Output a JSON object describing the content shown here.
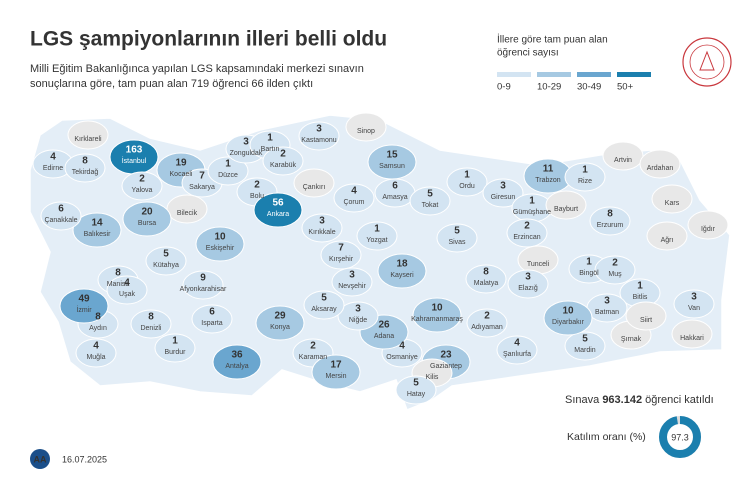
{
  "header": {
    "title": "LGS şampiyonlarının illeri belli oldu",
    "subtitle_lines": [
      "Milli Eğitim Bakanlığınca yapılan LGS kapsamındaki merkezi sınavın",
      "sonuçlarına göre, tam puan alan 719 öğrenci 66 ilden çıktı"
    ]
  },
  "legend": {
    "title_lines": [
      "İllere göre tam puan alan",
      "öğrenci sayısı"
    ],
    "items": [
      {
        "label": "0-9",
        "color": "#d3e4f2"
      },
      {
        "label": "10-29",
        "color": "#a6c9e2"
      },
      {
        "label": "30-49",
        "color": "#6aa6cf"
      },
      {
        "label": "50+",
        "color": "#1b7fae"
      }
    ],
    "no_data_color": "#e8e8e8"
  },
  "provinces": [
    {
      "name": "Kırklareli",
      "value": null
    },
    {
      "name": "Edirne",
      "value": 4
    },
    {
      "name": "Tekirdağ",
      "value": 8
    },
    {
      "name": "İstanbul",
      "value": 163
    },
    {
      "name": "Yalova",
      "value": 2
    },
    {
      "name": "Kocaeli",
      "value": 19
    },
    {
      "name": "Sakarya",
      "value": 7
    },
    {
      "name": "Düzce",
      "value": 1
    },
    {
      "name": "Zonguldak",
      "value": 3
    },
    {
      "name": "Bartın",
      "value": 1
    },
    {
      "name": "Karabük",
      "value": 2
    },
    {
      "name": "Kastamonu",
      "value": 3
    },
    {
      "name": "Sinop",
      "value": null
    },
    {
      "name": "Bolu",
      "value": 2
    },
    {
      "name": "Çankırı",
      "value": null
    },
    {
      "name": "Samsun",
      "value": 15
    },
    {
      "name": "Amasya",
      "value": 6
    },
    {
      "name": "Çorum",
      "value": 4
    },
    {
      "name": "Tokat",
      "value": 5
    },
    {
      "name": "Ordu",
      "value": 1
    },
    {
      "name": "Giresun",
      "value": 3
    },
    {
      "name": "Trabzon",
      "value": 11
    },
    {
      "name": "Rize",
      "value": 1
    },
    {
      "name": "Artvin",
      "value": null
    },
    {
      "name": "Ardahan",
      "value": null
    },
    {
      "name": "Kars",
      "value": null
    },
    {
      "name": "Iğdır",
      "value": null
    },
    {
      "name": "Ağrı",
      "value": null
    },
    {
      "name": "Gümüşhane",
      "value": 1
    },
    {
      "name": "Bayburt",
      "value": null
    },
    {
      "name": "Erzurum",
      "value": 8
    },
    {
      "name": "Erzincan",
      "value": 2
    },
    {
      "name": "Tunceli",
      "value": null
    },
    {
      "name": "Bingöl",
      "value": 1
    },
    {
      "name": "Muş",
      "value": 2
    },
    {
      "name": "Bitlis",
      "value": 1
    },
    {
      "name": "Van",
      "value": 3
    },
    {
      "name": "Hakkari",
      "value": null
    },
    {
      "name": "Şırnak",
      "value": null
    },
    {
      "name": "Siirt",
      "value": null
    },
    {
      "name": "Batman",
      "value": 3
    },
    {
      "name": "Mardin",
      "value": 5
    },
    {
      "name": "Diyarbakır",
      "value": 10
    },
    {
      "name": "Elazığ",
      "value": 3
    },
    {
      "name": "Malatya",
      "value": 8
    },
    {
      "name": "Adıyaman",
      "value": 2
    },
    {
      "name": "Şanlıurfa",
      "value": 4
    },
    {
      "name": "Gaziantep",
      "value": 23
    },
    {
      "name": "Kilis",
      "value": null
    },
    {
      "name": "Hatay",
      "value": 5
    },
    {
      "name": "Osmaniye",
      "value": 4
    },
    {
      "name": "Adana",
      "value": 26
    },
    {
      "name": "Kahramanmaraş",
      "value": 10
    },
    {
      "name": "Kayseri",
      "value": 18
    },
    {
      "name": "Sivas",
      "value": 5
    },
    {
      "name": "Yozgat",
      "value": 1
    },
    {
      "name": "Kırıkkale",
      "value": 3
    },
    {
      "name": "Kırşehir",
      "value": 7
    },
    {
      "name": "Ankara",
      "value": 56
    },
    {
      "name": "Nevşehir",
      "value": 3
    },
    {
      "name": "Niğde",
      "value": 3
    },
    {
      "name": "Aksaray",
      "value": 5
    },
    {
      "name": "Konya",
      "value": 29
    },
    {
      "name": "Karaman",
      "value": 2
    },
    {
      "name": "Mersin",
      "value": 17
    },
    {
      "name": "Antalya",
      "value": 36
    },
    {
      "name": "Burdur",
      "value": 1
    },
    {
      "name": "Isparta",
      "value": 6
    },
    {
      "name": "Muğla",
      "value": 4
    },
    {
      "name": "Aydın",
      "value": 8
    },
    {
      "name": "Denizli",
      "value": 8
    },
    {
      "name": "İzmir",
      "value": 49
    },
    {
      "name": "Manisa",
      "value": 8
    },
    {
      "name": "Uşak",
      "value": 4
    },
    {
      "name": "Afyonkarahisar",
      "value": 9
    },
    {
      "name": "Kütahya",
      "value": 5
    },
    {
      "name": "Bilecik",
      "value": null
    },
    {
      "name": "Eskişehir",
      "value": 10
    },
    {
      "name": "Bursa",
      "value": 20
    },
    {
      "name": "Balıkesir",
      "value": 14
    },
    {
      "name": "Çanakkale",
      "value": 6
    }
  ],
  "participants": {
    "prefix": "Sınava",
    "number": "963.142",
    "suffix": "öğrenci katıldı"
  },
  "participation_rate": {
    "label": "Katılım oranı (%)",
    "value": 97.3,
    "color": "#1b7fae",
    "track_color": "#dcdcdc"
  },
  "footer": {
    "logo": "AA",
    "date": "16.07.2025"
  }
}
